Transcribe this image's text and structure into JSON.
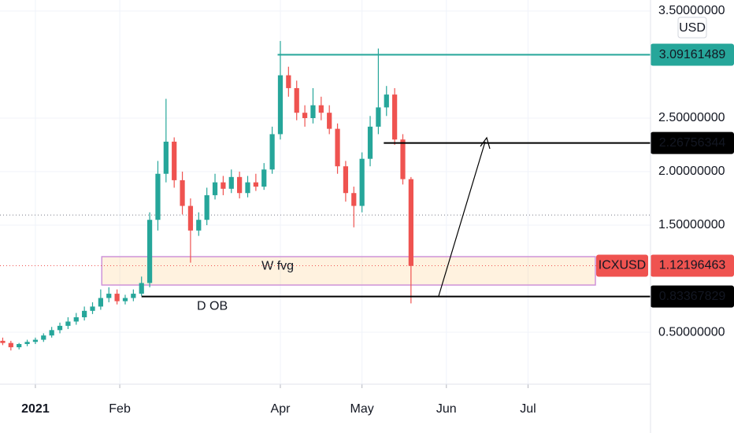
{
  "chart_data": {
    "type": "candlestick",
    "symbol": "ICXUSD",
    "currency": "USD",
    "up_color": "#26a69a",
    "down_color": "#ef5350",
    "x": [
      -12,
      -9,
      -6,
      -3,
      0,
      3,
      6,
      9,
      12,
      15,
      18,
      21,
      24,
      27,
      30,
      33,
      36,
      39,
      42,
      45,
      48,
      51,
      54,
      57,
      60,
      63,
      66,
      69,
      72,
      75,
      78,
      81,
      84,
      87,
      90,
      93,
      96,
      99,
      102,
      105,
      108,
      111,
      114,
      117,
      120,
      123,
      126,
      129,
      132,
      135,
      138
    ],
    "open": [
      0.42,
      0.4,
      0.36,
      0.39,
      0.41,
      0.43,
      0.47,
      0.52,
      0.56,
      0.6,
      0.64,
      0.7,
      0.74,
      0.82,
      0.86,
      0.79,
      0.82,
      0.86,
      0.96,
      1.55,
      1.98,
      2.28,
      1.92,
      1.68,
      1.45,
      1.55,
      1.78,
      1.9,
      1.84,
      1.95,
      1.8,
      1.9,
      1.86,
      2.02,
      2.35,
      2.9,
      2.78,
      2.55,
      2.5,
      2.62,
      2.55,
      2.4,
      2.05,
      1.8,
      1.68,
      2.12,
      2.42,
      2.6,
      2.72,
      2.3,
      1.93
    ],
    "high": [
      0.45,
      0.42,
      0.4,
      0.43,
      0.45,
      0.49,
      0.55,
      0.59,
      0.64,
      0.68,
      0.74,
      0.78,
      0.9,
      0.92,
      0.9,
      0.85,
      0.9,
      1.02,
      1.62,
      2.1,
      2.68,
      2.32,
      2.0,
      1.75,
      1.62,
      1.85,
      1.98,
      1.96,
      2.02,
      2.0,
      1.96,
      1.98,
      2.08,
      2.42,
      3.22,
      2.98,
      2.85,
      2.62,
      2.78,
      2.7,
      2.62,
      2.45,
      2.1,
      1.86,
      2.18,
      2.52,
      3.15,
      2.8,
      2.78,
      2.35,
      1.95
    ],
    "low": [
      0.38,
      0.33,
      0.34,
      0.37,
      0.39,
      0.41,
      0.45,
      0.49,
      0.53,
      0.57,
      0.61,
      0.67,
      0.71,
      0.78,
      0.76,
      0.76,
      0.79,
      0.84,
      0.92,
      1.45,
      1.9,
      1.85,
      1.6,
      1.15,
      1.4,
      1.5,
      1.74,
      1.78,
      1.8,
      1.75,
      1.76,
      1.82,
      1.83,
      1.98,
      2.3,
      2.7,
      2.48,
      2.42,
      2.45,
      2.48,
      2.35,
      1.98,
      1.72,
      1.48,
      1.62,
      2.05,
      2.35,
      2.52,
      2.25,
      1.88,
      0.77
    ],
    "close": [
      0.4,
      0.36,
      0.39,
      0.41,
      0.43,
      0.47,
      0.52,
      0.56,
      0.6,
      0.64,
      0.7,
      0.74,
      0.82,
      0.86,
      0.79,
      0.82,
      0.86,
      0.96,
      1.55,
      1.98,
      2.28,
      1.92,
      1.68,
      1.45,
      1.55,
      1.78,
      1.9,
      1.84,
      1.95,
      1.8,
      1.9,
      1.86,
      2.02,
      2.35,
      2.9,
      2.78,
      2.55,
      2.5,
      2.62,
      2.55,
      2.4,
      2.05,
      1.8,
      1.68,
      2.12,
      2.42,
      2.6,
      2.72,
      2.3,
      1.93,
      1.12
    ],
    "xlim": [
      -13,
      226
    ],
    "xticks": [
      {
        "value": 0,
        "label": "2021"
      },
      {
        "value": 31,
        "label": "Feb"
      },
      {
        "value": 90,
        "label": "Apr"
      },
      {
        "value": 120,
        "label": "May"
      },
      {
        "value": 151,
        "label": "Jun"
      },
      {
        "value": 181,
        "label": "Jul"
      }
    ],
    "ylim": [
      0.015,
      3.603
    ],
    "yticks": [
      {
        "value": 0.5,
        "label": "0.50000000"
      },
      {
        "value": 1.5,
        "label": "1.50000000"
      },
      {
        "value": 2.0,
        "label": "2.00000000"
      },
      {
        "value": 2.5,
        "label": "2.50000000"
      },
      {
        "value": 3.5,
        "label": "3.50000000"
      }
    ],
    "grid": true,
    "last_price": 1.12196463,
    "dotted_line": 1.595,
    "price_lines": [
      {
        "value": 3.09161489,
        "start": 89,
        "color": "#26a69a"
      },
      {
        "value": 2.26756344,
        "start": 128,
        "color": "#000000"
      },
      {
        "value": 0.83367829,
        "start": 39,
        "color": "#000000"
      }
    ],
    "zones": [
      {
        "label": "W fvg",
        "top": 1.206,
        "bottom": 0.941,
        "start": 24.4
      }
    ],
    "annotations": [
      {
        "text": "D OB",
        "x": 65,
        "y": 0.74
      }
    ]
  }
}
